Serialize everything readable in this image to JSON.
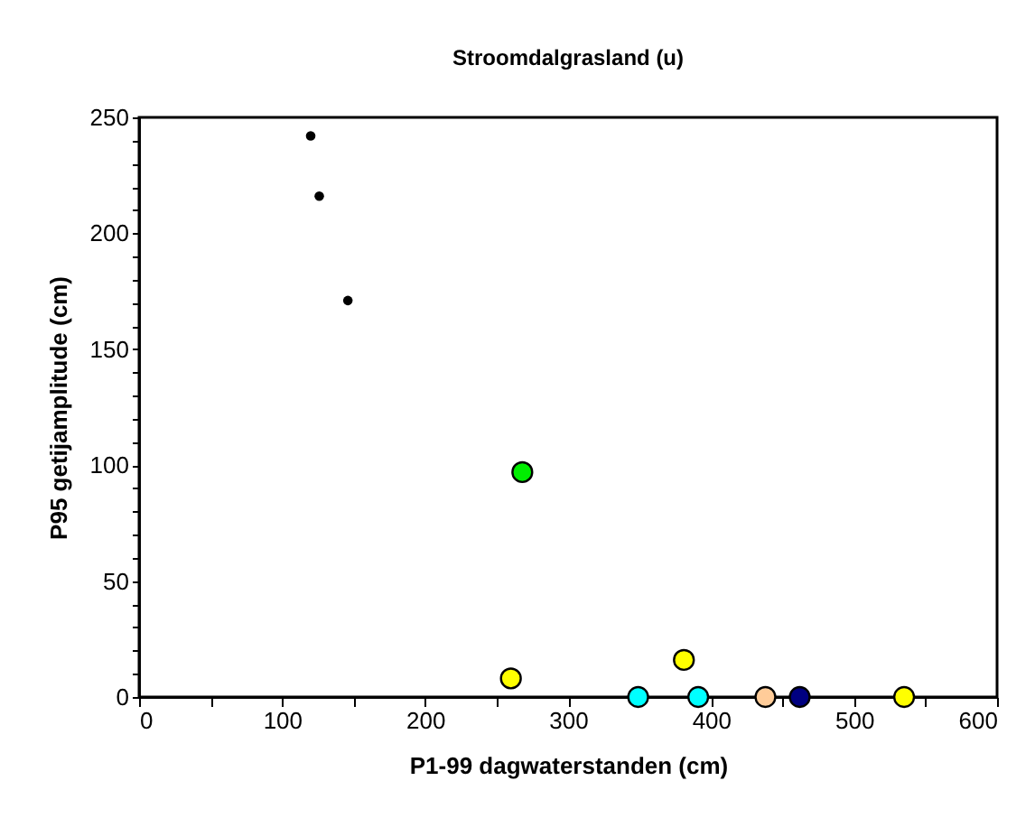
{
  "chart_data": {
    "type": "scatter",
    "title": "Stroomdalgrasland (u)",
    "xlabel": "P1-99 dagwaterstanden (cm)",
    "ylabel": "P95 getijamplitude (cm)",
    "xlim": [
      0,
      600
    ],
    "ylim": [
      0,
      250
    ],
    "xticks": [
      0,
      {
        "value": 50,
        "label": null
      },
      100,
      {
        "value": 150,
        "label": null
      },
      200,
      {
        "value": 250,
        "label": null
      },
      300,
      {
        "value": 350,
        "label": null
      },
      400,
      {
        "value": 450,
        "label": null
      },
      500,
      {
        "value": 550,
        "label": null
      },
      600
    ],
    "yticks": [
      0,
      {
        "value": 10,
        "label": null
      },
      {
        "value": 20,
        "label": null
      },
      {
        "value": 30,
        "label": null
      },
      {
        "value": 40,
        "label": null
      },
      50,
      {
        "value": 60,
        "label": null
      },
      {
        "value": 70,
        "label": null
      },
      {
        "value": 80,
        "label": null
      },
      {
        "value": 90,
        "label": null
      },
      100,
      {
        "value": 110,
        "label": null
      },
      {
        "value": 120,
        "label": null
      },
      {
        "value": 130,
        "label": null
      },
      {
        "value": 140,
        "label": null
      },
      150,
      {
        "value": 160,
        "label": null
      },
      {
        "value": 170,
        "label": null
      },
      {
        "value": 180,
        "label": null
      },
      {
        "value": 190,
        "label": null
      },
      200,
      {
        "value": 210,
        "label": null
      },
      {
        "value": 220,
        "label": null
      },
      {
        "value": 230,
        "label": null
      },
      {
        "value": 240,
        "label": null
      },
      250
    ],
    "grid": false,
    "marker": "circle",
    "series": [
      {
        "color": "#000000",
        "x": [
          120,
          126,
          146
        ],
        "values": [
          242,
          216,
          171
        ]
      },
      {
        "color": "#00ee00",
        "x": [
          268
        ],
        "values": [
          97
        ]
      },
      {
        "color": "#ffff00",
        "x": [
          260,
          381,
          535
        ],
        "values": [
          8,
          16,
          0
        ]
      },
      {
        "color": "#00ffff",
        "x": [
          349,
          391
        ],
        "values": [
          0,
          0
        ]
      },
      {
        "color": "#ffcc99",
        "x": [
          438
        ],
        "values": [
          0
        ]
      },
      {
        "color": "#000080",
        "x": [
          462
        ],
        "values": [
          0
        ]
      }
    ]
  }
}
